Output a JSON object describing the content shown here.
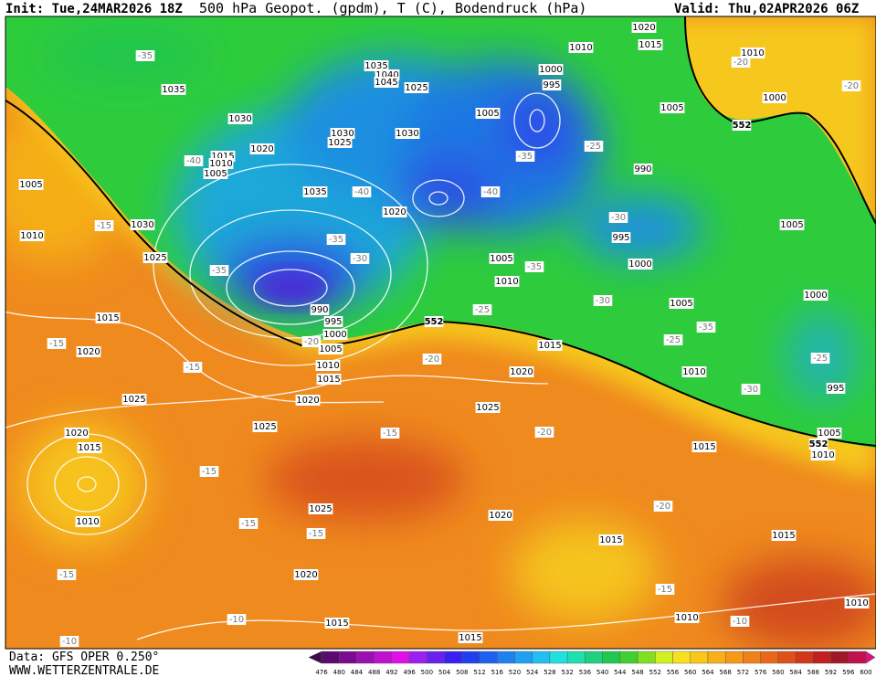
{
  "header": {
    "init": "Init: Tue,24MAR2026 18Z",
    "title": "500 hPa Geopot. (gpdm), T (C), Bodendruck (hPa)",
    "valid": "Valid: Thu,02APR2026 06Z"
  },
  "footer": {
    "data": "Data: GFS OPER 0.250°",
    "site": "WWW.WETTERZENTRALE.DE"
  },
  "colorbar": [
    476,
    480,
    484,
    488,
    492,
    496,
    500,
    504,
    508,
    512,
    516,
    520,
    524,
    528,
    532,
    536,
    540,
    544,
    548,
    552,
    556,
    560,
    564,
    568,
    572,
    576,
    580,
    584,
    588,
    592,
    596,
    600
  ],
  "geopotential_labels": [
    552,
    552,
    552
  ],
  "isobar_labels": [
    1020,
    1015,
    1010,
    1010,
    1035,
    1040,
    1045,
    1025,
    1000,
    995,
    1035,
    1005,
    1000,
    1005,
    1030,
    1030,
    1025,
    1030,
    1020,
    1015,
    1010,
    1005,
    990,
    1035,
    1005,
    1020,
    1030,
    1005,
    1010,
    995,
    1025,
    1005,
    1000,
    1010,
    1000,
    1005,
    990,
    995,
    1000,
    1015,
    1005,
    1020,
    1015,
    1010,
    1015,
    1020,
    1010,
    1025,
    1020,
    995,
    1025,
    1025,
    1020,
    1005,
    1015,
    1015,
    1010,
    1025,
    1020,
    1010,
    1015,
    1015,
    1020,
    1015,
    1015,
    1010,
    1010
  ],
  "temperature_labels": [
    -35,
    -20,
    -20,
    -40,
    -25,
    -35,
    -40,
    -40,
    -30,
    -15,
    -35,
    -30,
    -35,
    -35,
    -30,
    -25,
    -35,
    -25,
    -20,
    -20,
    -15,
    -15,
    -25,
    -30,
    -15,
    -20,
    -15,
    -20,
    -15,
    -15,
    -15,
    -15,
    -10,
    -10,
    -10
  ]
}
